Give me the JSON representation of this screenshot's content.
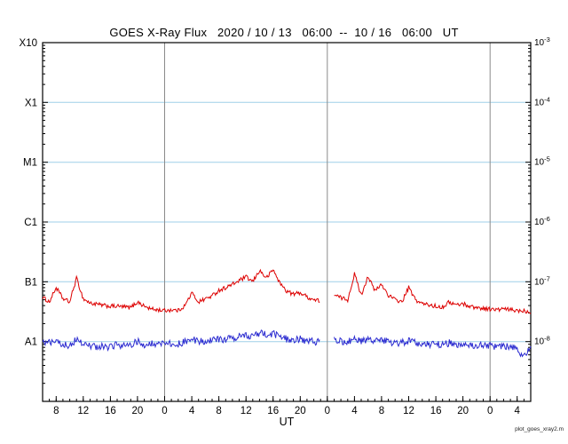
{
  "watermark": "plot_goes_xray2.m",
  "colors": {
    "grid": "#9fcfe8",
    "day_line": "#8a8a8a",
    "axis": "#000000",
    "background": "#ffffff",
    "long_series": "#dd0000",
    "short_series": "#2b2bd0"
  },
  "chart_data": {
    "type": "line",
    "title": "GOES X-Ray Flux   2020 / 10 / 13   06:00  --  10 / 16   06:00   UT",
    "xlabel": "UT",
    "x_unit": "hours since 2020-10-13 06:00 UT",
    "x_range": [
      0,
      72
    ],
    "ylim": [
      1e-09,
      0.001
    ],
    "y_scale": "log",
    "grid_exponents": [
      -4,
      -5,
      -6,
      -7,
      -8
    ],
    "day_boundaries_hours": [
      18,
      42,
      66
    ],
    "x_ticks": [
      [
        2,
        "8"
      ],
      [
        6,
        "12"
      ],
      [
        10,
        "16"
      ],
      [
        14,
        "20"
      ],
      [
        18,
        "0"
      ],
      [
        22,
        "4"
      ],
      [
        26,
        "8"
      ],
      [
        30,
        "12"
      ],
      [
        34,
        "16"
      ],
      [
        38,
        "20"
      ],
      [
        42,
        "0"
      ],
      [
        46,
        "4"
      ],
      [
        50,
        "8"
      ],
      [
        54,
        "12"
      ],
      [
        58,
        "16"
      ],
      [
        62,
        "20"
      ],
      [
        66,
        "0"
      ],
      [
        70,
        "4"
      ]
    ],
    "y_left_labels": [
      {
        "label": "X10",
        "exp": -3
      },
      {
        "label": "X1",
        "exp": -4
      },
      {
        "label": "M1",
        "exp": -5
      },
      {
        "label": "C1",
        "exp": -6
      },
      {
        "label": "B1",
        "exp": -7
      },
      {
        "label": "A1",
        "exp": -8
      }
    ],
    "y_right_exponents": [
      -3,
      -4,
      -5,
      -6,
      -7,
      -8
    ],
    "series": [
      {
        "name": "long wavelength (red)",
        "data_name": "long-series-path",
        "color": "#dd0000",
        "noise": 0.07,
        "seed": 1234,
        "hourly_values": [
          5.5e-08,
          4.6e-08,
          8e-08,
          5.2e-08,
          4.6e-08,
          1.15e-07,
          5.2e-08,
          4.4e-08,
          4.2e-08,
          4e-08,
          3.9e-08,
          3.9e-08,
          3.8e-08,
          3.7e-08,
          4.6e-08,
          3.9e-08,
          3.5e-08,
          3.4e-08,
          3.3e-08,
          3.4e-08,
          3.3e-08,
          4e-08,
          6.5e-08,
          4.6e-08,
          5.2e-08,
          5.8e-08,
          7.2e-08,
          8e-08,
          9e-08,
          1.05e-07,
          1.2e-07,
          1e-07,
          1.55e-07,
          1.15e-07,
          1.6e-07,
          9.5e-08,
          7e-08,
          6.2e-08,
          6.6e-08,
          5.6e-08,
          5e-08,
          4.8e-08,
          null,
          6e-08,
          5.4e-08,
          5e-08,
          1.35e-07,
          6e-08,
          1.25e-07,
          7e-08,
          9e-08,
          6e-08,
          5e-08,
          4.6e-08,
          8e-08,
          5e-08,
          4.3e-08,
          4.1e-08,
          3.9e-08,
          3.8e-08,
          4.6e-08,
          4.1e-08,
          4.3e-08,
          3.9e-08,
          3.7e-08,
          3.6e-08,
          3.5e-08,
          3.4e-08,
          3.5e-08,
          3.4e-08,
          3.3e-08,
          3.3e-08,
          3.1e-08
        ]
      },
      {
        "name": "short wavelength (blue)",
        "data_name": "short-series-path",
        "color": "#2b2bd0",
        "noise": 0.12,
        "seed": 5678,
        "hourly_values": [
          1e-08,
          9.5e-09,
          1e-08,
          9e-09,
          8.5e-09,
          1.1e-08,
          9e-09,
          8.5e-09,
          8e-09,
          8.5e-09,
          8e-09,
          9e-09,
          8.5e-09,
          9e-09,
          1e-08,
          9e-09,
          9e-09,
          9.5e-09,
          9e-09,
          9.5e-09,
          9e-09,
          1e-08,
          1.1e-08,
          1e-08,
          1e-08,
          1.05e-08,
          1.1e-08,
          1.1e-08,
          1.15e-08,
          1.2e-08,
          1.3e-08,
          1.2e-08,
          1.4e-08,
          1.3e-08,
          1.35e-08,
          1.2e-08,
          1.1e-08,
          1.05e-08,
          1.1e-08,
          1e-08,
          1e-08,
          1e-08,
          null,
          1.05e-08,
          1e-08,
          1e-08,
          1.15e-08,
          1e-08,
          1.1e-08,
          1e-08,
          1.05e-08,
          1e-08,
          9.5e-09,
          9.5e-09,
          1.05e-08,
          9.5e-09,
          9e-09,
          9e-09,
          9e-09,
          9e-09,
          9.5e-09,
          9e-09,
          9e-09,
          8.5e-09,
          8.5e-09,
          9e-09,
          8.5e-09,
          8e-09,
          8.5e-09,
          8e-09,
          7.5e-09,
          5.5e-09,
          8e-09
        ]
      }
    ]
  }
}
